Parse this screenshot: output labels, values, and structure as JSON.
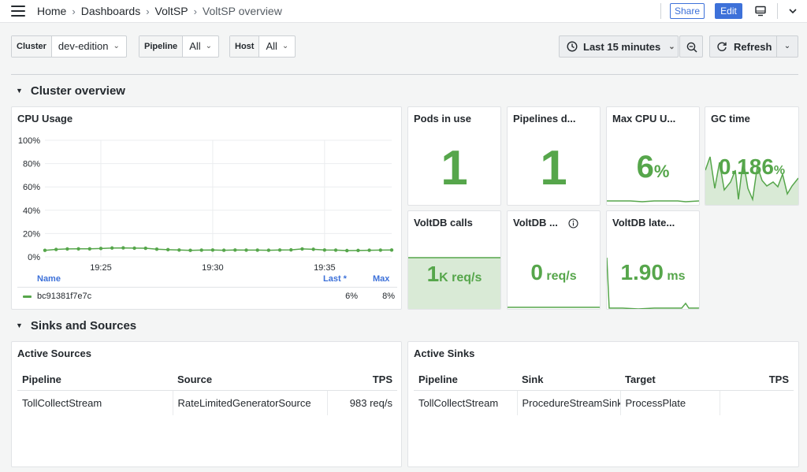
{
  "breadcrumbs": [
    "Home",
    "Dashboards",
    "VoltSP",
    "VoltSP overview"
  ],
  "toolbar": {
    "share_label": "Share",
    "edit_label": "Edit"
  },
  "variables": [
    {
      "label": "Cluster",
      "value": "dev-edition"
    },
    {
      "label": "Pipeline",
      "value": "All"
    },
    {
      "label": "Host",
      "value": "All"
    }
  ],
  "time_range": "Last 15 minutes",
  "refresh_label": "Refresh",
  "sections": {
    "cluster_overview": "Cluster overview",
    "sinks_sources": "Sinks and Sources"
  },
  "cpu_panel": {
    "title": "CPU Usage",
    "legend_headers": {
      "name": "Name",
      "last": "Last *",
      "max": "Max"
    },
    "legend_row": {
      "name": "bc91381f7e7c",
      "last": "6%",
      "max": "8%"
    }
  },
  "stats": {
    "pods": {
      "title": "Pods in use",
      "value": "1",
      "unit": ""
    },
    "pipelines": {
      "title": "Pipelines d...",
      "value": "1",
      "unit": ""
    },
    "max_cpu": {
      "title": "Max CPU U...",
      "value": "6",
      "unit": "%"
    },
    "gc_time": {
      "title": "GC time",
      "value": "0.186",
      "unit": "%"
    },
    "voltdb_calls": {
      "title": "VoltDB calls",
      "value": "1",
      "unit": "K req/s"
    },
    "voltdb_errors": {
      "title": "VoltDB ...",
      "value": "0",
      "unit": " req/s"
    },
    "voltdb_latency": {
      "title": "VoltDB late...",
      "value": "1.90",
      "unit": " ms"
    }
  },
  "sources_panel": {
    "title": "Active Sources",
    "headers": [
      "Pipeline",
      "Source",
      "TPS"
    ],
    "rows": [
      [
        "TollCollectStream",
        "RateLimitedGeneratorSource",
        "983 req/s"
      ]
    ]
  },
  "sinks_panel": {
    "title": "Active Sinks",
    "headers": [
      "Pipeline",
      "Sink",
      "Target",
      "TPS"
    ],
    "rows": [
      [
        "TollCollectStream",
        "ProcedureStreamSink",
        "ProcessPlate",
        ""
      ]
    ]
  },
  "colors": {
    "accent": "#3d71d9",
    "series": "#56a64b",
    "series_fill": "#d9ead6"
  },
  "chart_data": {
    "type": "line",
    "title": "CPU Usage",
    "x": [
      "19:22",
      "19:23",
      "19:23",
      "19:24",
      "19:24",
      "19:25",
      "19:25",
      "19:26",
      "19:26",
      "19:27",
      "19:27",
      "19:28",
      "19:28",
      "19:29",
      "19:29",
      "19:30",
      "19:30",
      "19:31",
      "19:31",
      "19:32",
      "19:32",
      "19:33",
      "19:33",
      "19:34",
      "19:34",
      "19:35",
      "19:35",
      "19:36",
      "19:36",
      "19:37",
      "19:37",
      "19:38"
    ],
    "x_ticks": [
      "19:25",
      "19:30",
      "19:35"
    ],
    "y_ticks": [
      "0%",
      "20%",
      "40%",
      "60%",
      "80%",
      "100%"
    ],
    "ylim": [
      0,
      100
    ],
    "series": [
      {
        "name": "bc91381f7e7c",
        "values": [
          5.6,
          6.4,
          6.8,
          6.9,
          6.9,
          7.2,
          7.6,
          7.7,
          7.5,
          7.4,
          6.6,
          6.2,
          5.9,
          5.6,
          5.8,
          5.9,
          5.7,
          5.9,
          5.8,
          5.8,
          5.7,
          5.9,
          6.0,
          6.8,
          6.5,
          5.9,
          5.8,
          5.4,
          5.5,
          5.7,
          5.8,
          5.9
        ]
      }
    ]
  }
}
